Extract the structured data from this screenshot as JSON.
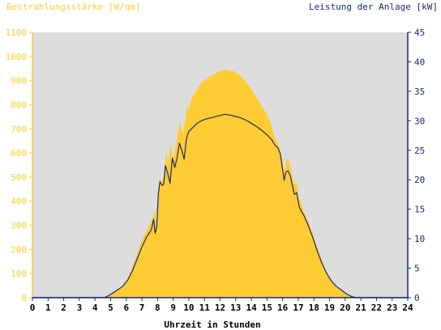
{
  "chart_data": {
    "type": "area",
    "left_axis_label": "Bestrahlungsstärke [W/qm]",
    "right_axis_label": "Leistung der Anlage [kW]",
    "xlabel": "Uhrzeit in Stunden",
    "xlim": [
      0,
      24
    ],
    "x_ticks": [
      0,
      1,
      2,
      3,
      4,
      5,
      6,
      7,
      8,
      9,
      10,
      11,
      12,
      13,
      14,
      15,
      16,
      17,
      18,
      19,
      20,
      21,
      22,
      23,
      24
    ],
    "ylim_left": [
      0,
      1100
    ],
    "y_ticks_left": [
      0,
      100,
      200,
      300,
      400,
      500,
      600,
      700,
      800,
      900,
      1000,
      1100
    ],
    "ylim_right": [
      0,
      45
    ],
    "y_ticks_right": [
      0,
      5,
      10,
      15,
      20,
      25,
      30,
      35,
      40,
      45
    ],
    "grid": false,
    "series": [
      {
        "name": "Bestrahlungsstärke",
        "axis": "left",
        "color": "#ffcc33",
        "points": [
          [
            0,
            0
          ],
          [
            4.5,
            0
          ],
          [
            4.7,
            5
          ],
          [
            5,
            15
          ],
          [
            5.3,
            28
          ],
          [
            5.7,
            45
          ],
          [
            6,
            70
          ],
          [
            6.3,
            110
          ],
          [
            6.6,
            165
          ],
          [
            6.9,
            220
          ],
          [
            7.2,
            265
          ],
          [
            7.5,
            300
          ],
          [
            7.7,
            335
          ],
          [
            7.85,
            370
          ],
          [
            7.95,
            260
          ],
          [
            8.05,
            420
          ],
          [
            8.15,
            490
          ],
          [
            8.3,
            480
          ],
          [
            8.45,
            520
          ],
          [
            8.55,
            610
          ],
          [
            8.7,
            560
          ],
          [
            8.85,
            640
          ],
          [
            9.0,
            560
          ],
          [
            9.15,
            630
          ],
          [
            9.3,
            680
          ],
          [
            9.45,
            730
          ],
          [
            9.6,
            680
          ],
          [
            9.75,
            720
          ],
          [
            9.9,
            800
          ],
          [
            10.0,
            780
          ],
          [
            10.2,
            830
          ],
          [
            10.5,
            860
          ],
          [
            10.8,
            890
          ],
          [
            11.1,
            905
          ],
          [
            11.4,
            920
          ],
          [
            11.7,
            930
          ],
          [
            12.0,
            940
          ],
          [
            12.3,
            945
          ],
          [
            12.6,
            942
          ],
          [
            12.9,
            938
          ],
          [
            13.2,
            925
          ],
          [
            13.5,
            905
          ],
          [
            13.8,
            880
          ],
          [
            14.1,
            855
          ],
          [
            14.4,
            820
          ],
          [
            14.7,
            790
          ],
          [
            15.0,
            760
          ],
          [
            15.3,
            710
          ],
          [
            15.5,
            660
          ],
          [
            15.7,
            640
          ],
          [
            15.85,
            610
          ],
          [
            16.0,
            560
          ],
          [
            16.1,
            520
          ],
          [
            16.2,
            560
          ],
          [
            16.35,
            580
          ],
          [
            16.5,
            540
          ],
          [
            16.6,
            510
          ],
          [
            16.75,
            470
          ],
          [
            16.9,
            480
          ],
          [
            17.05,
            410
          ],
          [
            17.2,
            390
          ],
          [
            17.35,
            360
          ],
          [
            17.6,
            320
          ],
          [
            17.9,
            270
          ],
          [
            18.2,
            210
          ],
          [
            18.5,
            155
          ],
          [
            18.8,
            110
          ],
          [
            19.1,
            75
          ],
          [
            19.4,
            50
          ],
          [
            19.8,
            30
          ],
          [
            20.1,
            18
          ],
          [
            20.4,
            8
          ],
          [
            20.7,
            0
          ],
          [
            24,
            0
          ]
        ]
      },
      {
        "name": "Leistung",
        "axis": "right",
        "color": "#1a2a6c",
        "points": [
          [
            0,
            0
          ],
          [
            4.6,
            0
          ],
          [
            4.9,
            0.4
          ],
          [
            5.2,
            0.9
          ],
          [
            5.5,
            1.4
          ],
          [
            5.8,
            2.0
          ],
          [
            6.1,
            3.0
          ],
          [
            6.4,
            4.6
          ],
          [
            6.7,
            6.6
          ],
          [
            7.0,
            8.6
          ],
          [
            7.3,
            10.3
          ],
          [
            7.6,
            11.5
          ],
          [
            7.75,
            13.3
          ],
          [
            7.85,
            10.9
          ],
          [
            7.95,
            12.0
          ],
          [
            8.05,
            17.5
          ],
          [
            8.15,
            19.7
          ],
          [
            8.3,
            19.0
          ],
          [
            8.4,
            19.3
          ],
          [
            8.5,
            22.4
          ],
          [
            8.65,
            21.1
          ],
          [
            8.8,
            19.4
          ],
          [
            8.95,
            23.7
          ],
          [
            9.1,
            22.1
          ],
          [
            9.25,
            23.7
          ],
          [
            9.4,
            26.2
          ],
          [
            9.55,
            25.0
          ],
          [
            9.7,
            23.5
          ],
          [
            9.85,
            27.0
          ],
          [
            10.0,
            28.2
          ],
          [
            10.2,
            28.7
          ],
          [
            10.5,
            29.5
          ],
          [
            10.8,
            30.0
          ],
          [
            11.1,
            30.3
          ],
          [
            11.4,
            30.5
          ],
          [
            11.7,
            30.7
          ],
          [
            12.0,
            30.9
          ],
          [
            12.3,
            31.1
          ],
          [
            12.6,
            31.0
          ],
          [
            12.9,
            30.8
          ],
          [
            13.2,
            30.6
          ],
          [
            13.5,
            30.3
          ],
          [
            13.8,
            29.9
          ],
          [
            14.1,
            29.4
          ],
          [
            14.4,
            28.9
          ],
          [
            14.7,
            28.3
          ],
          [
            15.0,
            27.6
          ],
          [
            15.3,
            26.8
          ],
          [
            15.5,
            25.9
          ],
          [
            15.7,
            25.4
          ],
          [
            15.85,
            24.4
          ],
          [
            16.0,
            21.6
          ],
          [
            16.1,
            19.9
          ],
          [
            16.2,
            21.3
          ],
          [
            16.35,
            21.5
          ],
          [
            16.5,
            20.6
          ],
          [
            16.6,
            19.3
          ],
          [
            16.75,
            17.5
          ],
          [
            16.9,
            17.8
          ],
          [
            17.05,
            15.5
          ],
          [
            17.2,
            14.6
          ],
          [
            17.35,
            14.0
          ],
          [
            17.6,
            12.5
          ],
          [
            17.9,
            10.4
          ],
          [
            18.2,
            8.0
          ],
          [
            18.5,
            5.9
          ],
          [
            18.8,
            4.2
          ],
          [
            19.1,
            2.9
          ],
          [
            19.4,
            2.0
          ],
          [
            19.8,
            1.2
          ],
          [
            20.1,
            0.6
          ],
          [
            20.4,
            0.2
          ],
          [
            20.7,
            0
          ],
          [
            24,
            0
          ]
        ]
      }
    ],
    "colors": {
      "left_axis": "#ffcc33",
      "right_axis": "#1a2a6c",
      "plot_background": "#dddddd",
      "x_axis_text": "#000000"
    }
  }
}
